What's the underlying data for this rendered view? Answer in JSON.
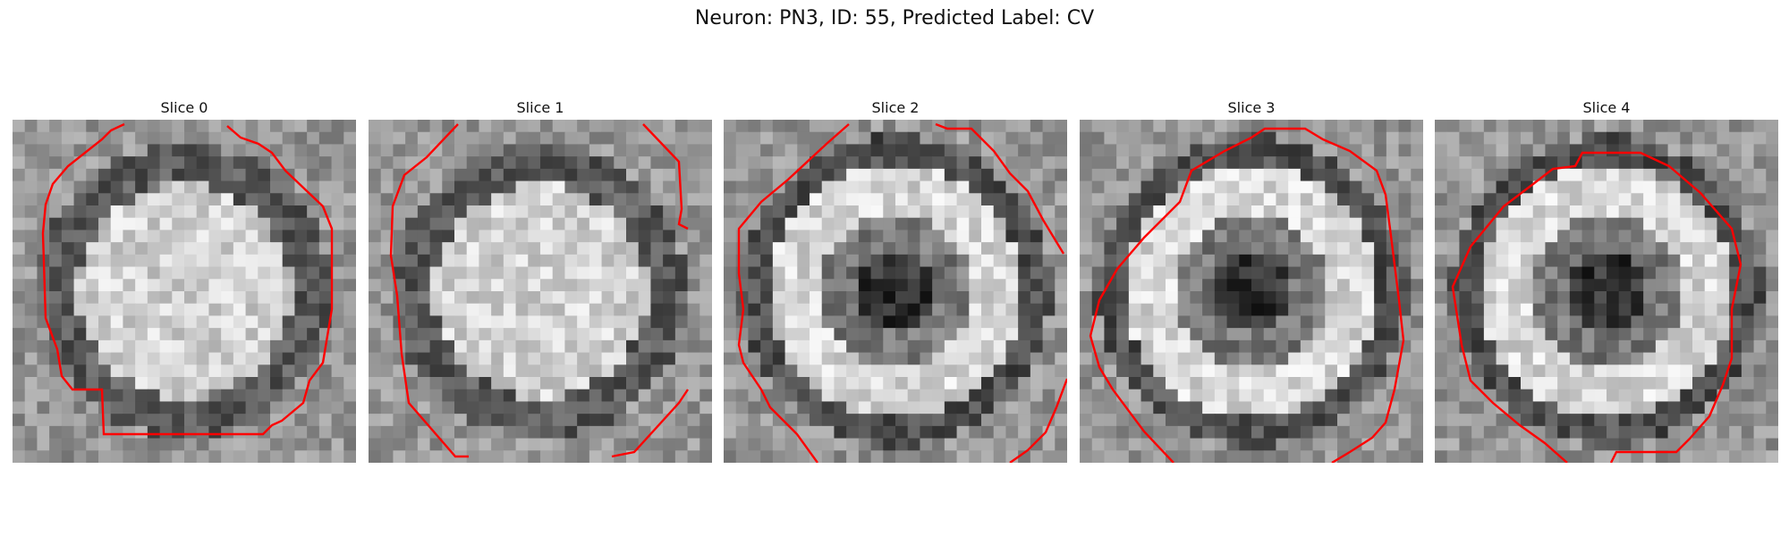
{
  "figure": {
    "title": "Neuron: PN3, ID: 55, Predicted Label: CV"
  },
  "panels": [
    {
      "title": "Slice 0",
      "pattern": "bright-center"
    },
    {
      "title": "Slice 1",
      "pattern": "bright-center"
    },
    {
      "title": "Slice 2",
      "pattern": "dark-center"
    },
    {
      "title": "Slice 3",
      "pattern": "dark-center"
    },
    {
      "title": "Slice 4",
      "pattern": "dark-center"
    }
  ],
  "colors": {
    "contour": "#ff0000"
  }
}
